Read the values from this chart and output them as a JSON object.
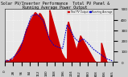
{
  "title": "Solar PV/Inverter Performance  Total PV Panel & Running Average Power Output",
  "bg_color": "#d0d0d0",
  "plot_bg": "#e8e8e8",
  "bar_color": "#cc0000",
  "avg_color": "#0000cc",
  "grid_color": "#ffffff",
  "ylim": [
    0,
    500
  ],
  "xlim": [
    0,
    366
  ],
  "yticks": [
    0,
    100,
    200,
    300,
    400,
    500
  ],
  "pv_data_x": [
    0,
    1,
    2,
    3,
    4,
    5,
    6,
    7,
    8,
    9,
    10,
    11,
    12,
    13,
    14,
    15,
    16,
    17,
    18,
    19,
    20,
    21,
    22,
    23,
    24,
    25,
    26,
    27,
    28,
    29,
    30,
    31,
    32,
    33,
    34,
    35,
    36,
    37,
    38,
    39,
    40,
    41,
    42,
    43,
    44,
    45,
    46,
    47,
    48,
    49,
    50,
    51,
    52,
    53,
    54,
    55,
    56,
    57,
    58,
    59,
    60,
    61,
    62,
    63,
    64,
    65,
    66,
    67,
    68,
    69,
    70,
    71,
    72,
    73,
    74,
    75,
    76,
    77,
    78,
    79,
    80,
    81,
    82,
    83,
    84,
    85,
    86,
    87,
    88,
    89,
    90,
    91,
    92,
    93,
    94,
    95,
    96,
    97,
    98,
    99,
    100,
    101,
    102,
    103,
    104,
    105,
    106,
    107,
    108,
    109,
    110,
    111,
    112,
    113,
    114,
    115,
    116,
    117,
    118,
    119,
    120,
    121,
    122,
    123,
    124,
    125,
    126,
    127,
    128,
    129,
    130,
    131,
    132,
    133,
    134,
    135,
    136,
    137,
    138,
    139,
    140,
    141,
    142,
    143,
    144,
    145,
    146,
    147,
    148,
    149,
    150,
    151,
    152,
    153,
    154,
    155,
    156,
    157,
    158,
    159,
    160,
    161,
    162,
    163,
    164,
    165,
    166,
    167,
    168,
    169,
    170,
    171,
    172,
    173,
    174,
    175,
    176,
    177,
    178,
    179,
    180,
    181,
    182,
    183,
    184,
    185,
    186,
    187,
    188,
    189,
    190,
    191,
    192,
    193,
    194,
    195,
    196,
    197,
    198,
    199,
    200,
    201,
    202,
    203,
    204,
    205,
    206,
    207,
    208,
    209,
    210,
    211,
    212,
    213,
    214,
    215,
    216,
    217,
    218,
    219,
    220,
    221,
    222,
    223,
    224,
    225,
    226,
    227,
    228,
    229,
    230,
    231,
    232,
    233,
    234,
    235,
    236,
    237,
    238,
    239,
    240,
    241,
    242,
    243,
    244,
    245,
    246,
    247,
    248,
    249,
    250,
    251,
    252,
    253,
    254,
    255,
    256,
    257,
    258,
    259,
    260,
    261,
    262,
    263,
    264,
    265,
    266,
    267,
    268,
    269,
    270,
    271,
    272,
    273,
    274,
    275,
    276,
    277,
    278,
    279,
    280,
    281,
    282,
    283,
    284,
    285,
    286,
    287,
    288,
    289,
    290,
    291,
    292,
    293,
    294,
    295,
    296,
    297,
    298,
    299,
    300,
    301,
    302,
    303,
    304,
    305,
    306,
    307,
    308,
    309,
    310,
    311,
    312,
    313,
    314,
    315,
    316,
    317,
    318,
    319,
    320,
    321,
    322,
    323,
    324,
    325,
    326,
    327,
    328,
    329,
    330,
    331,
    332,
    333,
    334,
    335,
    336,
    337,
    338,
    339,
    340,
    341,
    342,
    343,
    344,
    345,
    346,
    347,
    348,
    349,
    350,
    351,
    352,
    353,
    354,
    355,
    356,
    357,
    358,
    359,
    360,
    361,
    362,
    363,
    364,
    365
  ],
  "pv_data_y": [
    5,
    8,
    10,
    12,
    15,
    18,
    20,
    18,
    15,
    12,
    10,
    8,
    6,
    8,
    10,
    15,
    20,
    25,
    30,
    28,
    25,
    22,
    20,
    18,
    16,
    20,
    25,
    30,
    35,
    40,
    45,
    50,
    55,
    60,
    65,
    70,
    75,
    80,
    85,
    90,
    95,
    100,
    105,
    110,
    115,
    120,
    125,
    130,
    135,
    140,
    145,
    150,
    155,
    160,
    165,
    170,
    175,
    180,
    185,
    190,
    195,
    200,
    210,
    220,
    230,
    240,
    250,
    260,
    270,
    280,
    290,
    300,
    310,
    315,
    320,
    325,
    330,
    335,
    340,
    345,
    350,
    360,
    370,
    380,
    385,
    390,
    395,
    400,
    405,
    410,
    415,
    420,
    425,
    430,
    435,
    440,
    445,
    450,
    455,
    460,
    465,
    468,
    470,
    468,
    465,
    462,
    460,
    455,
    450,
    445,
    440,
    438,
    440,
    445,
    450,
    455,
    460,
    462,
    460,
    458,
    455,
    450,
    445,
    440,
    435,
    430,
    425,
    420,
    415,
    410,
    405,
    395,
    385,
    375,
    365,
    355,
    345,
    335,
    325,
    315,
    305,
    295,
    285,
    275,
    265,
    255,
    245,
    235,
    225,
    215,
    205,
    490,
    480,
    470,
    460,
    450,
    440,
    430,
    420,
    410,
    400,
    390,
    380,
    370,
    360,
    350,
    340,
    330,
    320,
    310,
    300,
    290,
    280,
    270,
    260,
    250,
    240,
    230,
    220,
    210,
    200,
    190,
    180,
    170,
    160,
    150,
    140,
    130,
    120,
    110,
    100,
    90,
    85,
    80,
    75,
    70,
    65,
    60,
    55,
    50,
    45,
    40,
    38,
    36,
    34,
    32,
    30,
    28,
    26,
    24,
    22,
    350,
    360,
    370,
    380,
    370,
    360,
    350,
    340,
    330,
    320,
    310,
    300,
    290,
    280,
    270,
    260,
    250,
    240,
    230,
    220,
    210,
    200,
    190,
    180,
    170,
    160,
    150,
    140,
    130,
    120,
    115,
    120,
    130,
    140,
    150,
    160,
    170,
    180,
    190,
    200,
    210,
    220,
    230,
    240,
    250,
    245,
    240,
    235,
    230,
    225,
    220,
    215,
    210,
    205,
    200,
    195,
    190,
    185,
    180,
    175,
    170,
    165,
    160,
    155,
    150,
    145,
    140,
    135,
    130,
    125,
    120,
    115,
    110,
    105,
    100,
    95,
    90,
    85,
    80,
    75,
    70,
    65,
    60,
    55,
    50,
    45,
    40,
    35,
    30,
    25,
    20,
    15,
    10,
    8,
    6,
    4,
    3,
    2,
    1,
    0,
    0,
    0,
    0,
    0,
    0,
    0,
    0,
    0,
    0,
    0,
    0,
    0,
    0,
    0,
    0,
    180,
    170,
    160,
    150,
    140,
    130,
    120,
    110,
    100,
    90,
    80,
    70,
    60,
    50,
    40,
    30,
    20,
    10,
    5,
    3
  ],
  "avg_x": [
    0,
    15,
    30,
    50,
    70,
    90,
    110,
    130,
    150,
    165,
    180,
    195,
    210,
    220,
    235,
    250,
    265,
    280,
    300,
    320,
    345,
    360,
    365
  ],
  "avg_y": [
    8,
    15,
    50,
    110,
    280,
    440,
    450,
    390,
    220,
    160,
    140,
    130,
    350,
    310,
    230,
    190,
    220,
    180,
    120,
    80,
    30,
    15,
    5
  ],
  "legend_pv": "Total PV Output",
  "legend_avg": "Running Average",
  "title_fontsize": 3.5,
  "tick_fontsize": 3
}
